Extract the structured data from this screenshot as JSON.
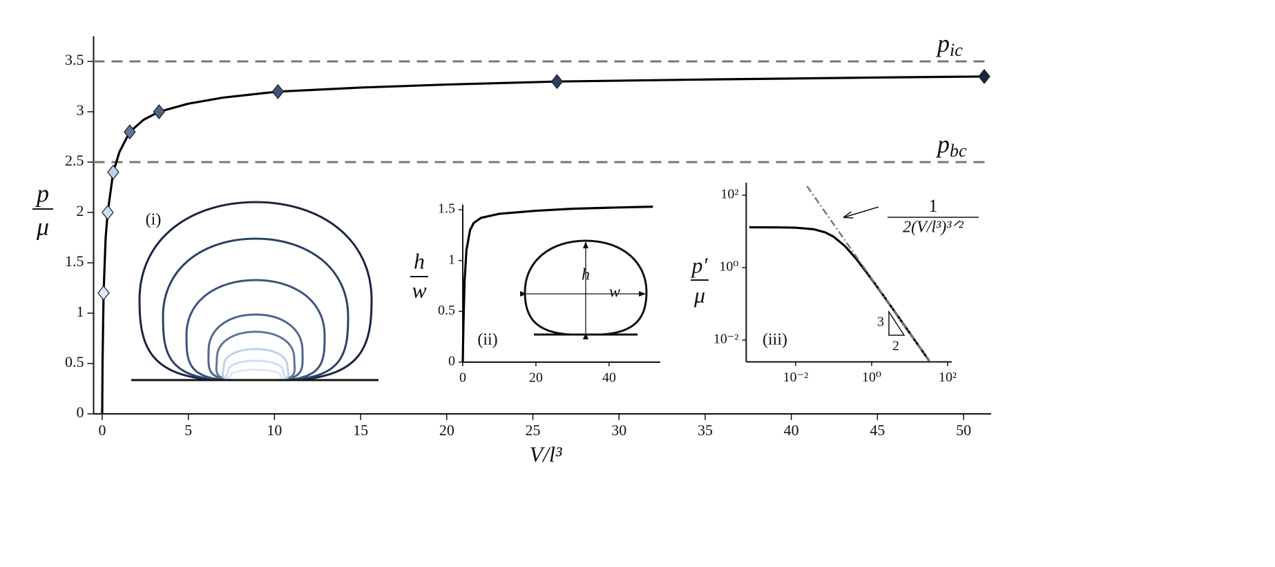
{
  "chart_data": [
    {
      "type": "line",
      "xlabel": "V/l³",
      "ylabel": {
        "numerator": "p",
        "denominator": "μ"
      },
      "xlim": [
        -0.5,
        51.6
      ],
      "ylim": [
        0,
        3.75
      ],
      "xticks": [
        0,
        5,
        10,
        15,
        20,
        25,
        30,
        35,
        40,
        45,
        50
      ],
      "yticks": [
        0,
        0.5,
        1,
        1.5,
        2,
        2.5,
        3,
        3.5
      ],
      "series": [
        {
          "color": "#000000",
          "x": [
            0,
            0.02,
            0.08,
            0.2,
            0.32,
            0.64,
            1.0,
            1.6,
            2.4,
            3.3,
            5,
            7,
            10.2,
            15,
            20,
            26.4,
            35,
            45,
            51.2
          ],
          "values": [
            0,
            0.5,
            1.2,
            1.75,
            2.0,
            2.4,
            2.6,
            2.8,
            2.92,
            3.0,
            3.08,
            3.14,
            3.2,
            3.24,
            3.27,
            3.3,
            3.32,
            3.34,
            3.35
          ]
        },
        {
          "marker": "diamond",
          "x": [
            0.08,
            0.32,
            0.64,
            1.6,
            3.3,
            10.2,
            26.4,
            51.2
          ],
          "values": [
            1.2,
            2.0,
            2.4,
            2.8,
            3.0,
            3.2,
            3.3,
            3.35
          ],
          "colors": [
            "#dde9f7",
            "#cddff3",
            "#bcd2ec",
            "#62769c",
            "#4e648c",
            "#3e547e",
            "#2c3f67",
            "#1a2640"
          ]
        }
      ],
      "reference_lines": [
        {
          "value": 3.5,
          "symbol": "p",
          "subscript": "ic",
          "color": "#777777"
        },
        {
          "value": 2.5,
          "symbol": "p",
          "subscript": "bc",
          "color": "#777777"
        }
      ]
    },
    {
      "type": "diagram",
      "label": "(i)"
    },
    {
      "type": "line",
      "label": "(ii)",
      "ylabel": {
        "numerator": "h",
        "denominator": "w"
      },
      "xlim": [
        0,
        54
      ],
      "ylim": [
        0,
        1.55
      ],
      "xticks": [
        0,
        20,
        40
      ],
      "yticks": [
        0,
        0.5,
        1,
        1.5
      ],
      "annotations": [
        "h",
        "w"
      ],
      "series": [
        {
          "color": "#000000",
          "x": [
            0,
            0.2,
            0.5,
            1,
            2,
            3,
            5,
            10,
            20,
            30,
            40,
            52
          ],
          "values": [
            0,
            0.4,
            0.8,
            1.1,
            1.3,
            1.37,
            1.42,
            1.46,
            1.49,
            1.51,
            1.52,
            1.53
          ]
        }
      ]
    },
    {
      "type": "line",
      "label": "(iii)",
      "xscale": "log",
      "yscale": "log",
      "ylabel": {
        "numerator": "p′",
        "denominator": "μ"
      },
      "xlim": [
        0.0005,
        100
      ],
      "ylim": [
        0.0025,
        220
      ],
      "xticks": [
        {
          "value": 0.01,
          "label": "10⁻²"
        },
        {
          "value": 1,
          "label": "10⁰"
        },
        {
          "value": 100,
          "label": "10²"
        }
      ],
      "yticks": [
        {
          "value": 0.01,
          "label": "10⁻²"
        },
        {
          "value": 1,
          "label": "10⁰"
        },
        {
          "value": 100,
          "label": "10²"
        }
      ],
      "annotation": {
        "numerator": "1",
        "denominator": "2(V/l³)³ᐟ²"
      },
      "slope_labels": [
        "3",
        "2"
      ],
      "series": [
        {
          "color": "#000000",
          "x": [
            0.0006,
            0.003,
            0.01,
            0.03,
            0.06,
            0.1,
            0.2,
            0.4,
            1,
            2,
            5,
            10,
            20,
            33
          ],
          "values": [
            13.0,
            12.94,
            12.67,
            11.45,
            9.41,
            7.13,
            3.91,
            1.715,
            0.481,
            0.1745,
            0.0446,
            0.0158,
            0.00559,
            0.00264
          ]
        },
        {
          "color": "#777777",
          "dash": "dashdot",
          "x": [
            0.02,
            33
          ],
          "values": [
            176.8,
            0.002637
          ]
        }
      ]
    }
  ]
}
